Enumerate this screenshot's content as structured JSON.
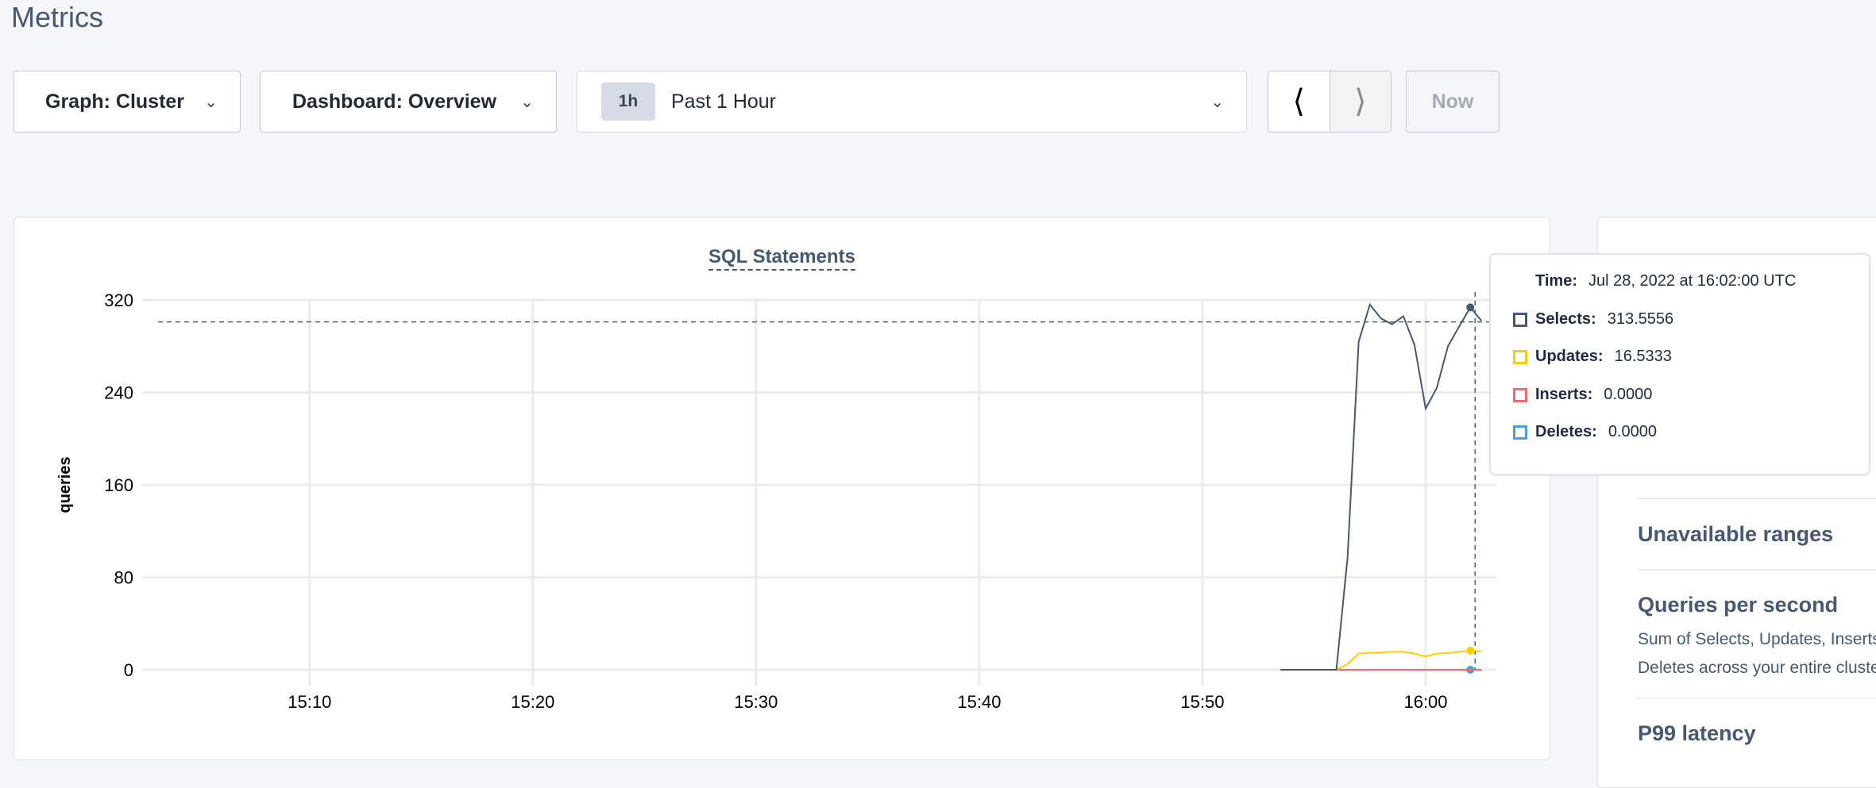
{
  "page": {
    "title": "Metrics"
  },
  "toolbar": {
    "graph_label": "Graph: Cluster",
    "dashboard_label": "Dashboard: Overview",
    "time_badge": "1h",
    "time_label": "Past 1 Hour",
    "prev_icon": "chevron-left-icon",
    "next_icon": "chevron-right-icon",
    "now_label": "Now"
  },
  "tooltip": {
    "time_label": "Time:",
    "time_value": "Jul 28, 2022 at 16:02:00 UTC",
    "rows": [
      {
        "label": "Selects:",
        "value": "313.5556",
        "color": "#475872"
      },
      {
        "label": "Updates:",
        "value": "16.5333",
        "color": "#ffcd02"
      },
      {
        "label": "Inserts:",
        "value": "0.0000",
        "color": "#f16969"
      },
      {
        "label": "Deletes:",
        "value": "0.0000",
        "color": "#4e9fd1"
      }
    ]
  },
  "side_panel": {
    "items": [
      {
        "title": "Unavailable ranges"
      },
      {
        "title": "Queries per second",
        "desc": "Sum of Selects, Updates, Inserts, and Deletes across your entire cluster."
      },
      {
        "title": "P99 latency"
      }
    ]
  },
  "chart_data": {
    "type": "line",
    "title": "SQL Statements",
    "ylabel": "queries",
    "xlabel": "",
    "ylim": [
      0,
      320
    ],
    "yticks": [
      "0",
      "80",
      "160",
      "240",
      "320"
    ],
    "xlim": [
      "15:02:30",
      "16:03:10"
    ],
    "xticks": [
      "15:10",
      "15:20",
      "15:30",
      "15:40",
      "15:50",
      "16:00"
    ],
    "grid": true,
    "hover_time": "16:02:00",
    "x": [
      "15:53:30",
      "15:54:00",
      "15:54:30",
      "15:55:00",
      "15:55:30",
      "15:56:00",
      "15:56:30",
      "15:57:00",
      "15:57:30",
      "15:58:00",
      "15:58:30",
      "15:59:00",
      "15:59:30",
      "16:00:00",
      "16:00:30",
      "16:01:00",
      "16:01:30",
      "16:02:00",
      "16:02:30"
    ],
    "series": [
      {
        "name": "Selects",
        "color": "#475872",
        "values": [
          0,
          0,
          0,
          0,
          0,
          0,
          97,
          284,
          316,
          304,
          299,
          306,
          281,
          226,
          244,
          280,
          297,
          313.5556,
          302
        ]
      },
      {
        "name": "Updates",
        "color": "#ffcd02",
        "values": [
          0,
          0,
          0,
          0,
          0,
          0,
          5,
          14,
          14.6,
          15,
          15.5,
          15.5,
          14,
          11.5,
          14,
          14.5,
          15.5,
          16.5333,
          16
        ]
      },
      {
        "name": "Inserts",
        "color": "#f16969",
        "values": [
          0,
          0,
          0,
          0,
          0,
          0,
          0,
          0,
          0,
          0,
          0,
          0,
          0,
          0,
          0,
          0,
          0,
          0,
          0
        ]
      },
      {
        "name": "Deletes",
        "color": "#4e9fd1",
        "values": [
          0,
          0,
          0,
          0,
          0,
          0,
          0,
          0,
          0,
          0,
          0,
          0,
          0,
          0,
          0,
          0,
          0,
          0,
          0
        ]
      }
    ]
  }
}
